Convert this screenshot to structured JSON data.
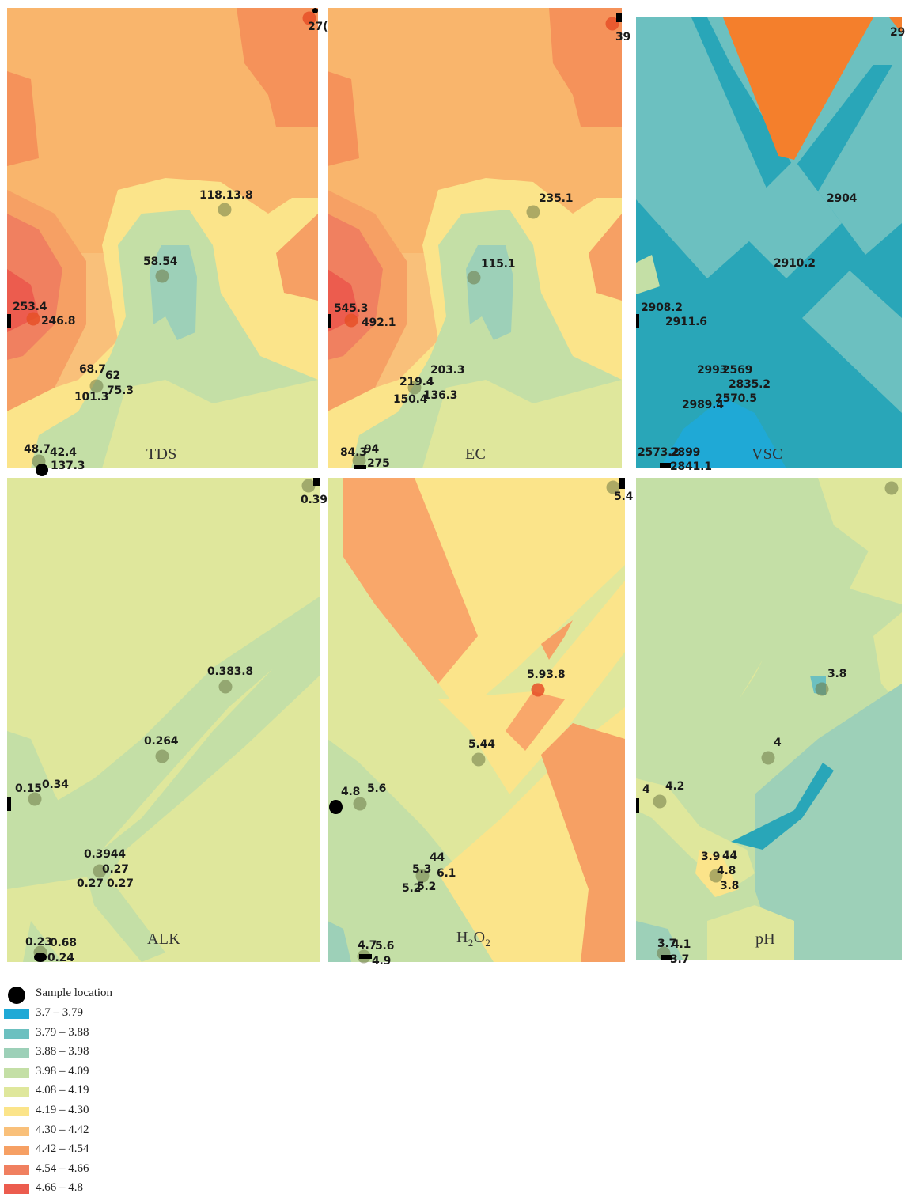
{
  "panels": {
    "tds": {
      "title": "TDS",
      "labels": {
        "a": "118.13.8",
        "b": "58.54",
        "c": "253.4",
        "d": "246.8",
        "e": "68.7",
        "f": "62",
        "g": "101.3",
        "h": "75.3",
        "i": "48.7",
        "j": "42.4",
        "k": "137.3",
        "l": "27("
      }
    },
    "ec": {
      "title": "EC",
      "labels": {
        "a": "235.1",
        "b": "115.1",
        "c": "545.3",
        "d": "492.1",
        "e": "203.3",
        "f": "219.4",
        "g": "150.4",
        "h": "136.3",
        "i": "84.3",
        "j": "94",
        "k": "275",
        "l": "39"
      }
    },
    "vsc": {
      "title": "VSC",
      "labels": {
        "a": "2904",
        "b": "2910.2",
        "c": "2908.2",
        "d": "2911.6",
        "e": "2993",
        "f": "2569",
        "g": "2835.2",
        "h": "2989.4",
        "i": "2570.5",
        "j": "2573.2",
        "k": "2899",
        "l": "2841.1",
        "m": "29"
      }
    },
    "alk": {
      "title": "ALK",
      "labels": {
        "a": "0.383.8",
        "b": "0.264",
        "c": "0.15",
        "d": "0.34",
        "e": "0.3944",
        "f": "0.27",
        "g": "0.27",
        "h": "0.27",
        "i": "0.23",
        "j": "0.68",
        "k": "0.24",
        "l": "0.39"
      }
    },
    "h2o2": {
      "title_main": "H",
      "title_sub1": "2",
      "title_mid": "O",
      "title_sub2": "2",
      "labels": {
        "a": "5.93.8",
        "b": "5.44",
        "c": "4.8",
        "d": "5.6",
        "e": "44",
        "f": "5.3",
        "g": "6.1",
        "h": "5.2",
        "i": "5.2",
        "j": "4.7",
        "k": "5.6",
        "l": "4.9",
        "m": "5.4"
      }
    },
    "ph": {
      "title": "pH",
      "labels": {
        "a": "3.8",
        "b": "4",
        "c": "4",
        "d": "4.2",
        "e": "3.9",
        "f": "44",
        "g": "4.8",
        "h": "3.8",
        "i": "3.7",
        "j": "4.1",
        "k": "3.7"
      }
    }
  },
  "legend": {
    "sample_location": "Sample location",
    "classes": [
      {
        "label": "3.7 – 3.79",
        "color": "#1fa9d6"
      },
      {
        "label": "3.79 – 3.88",
        "color": "#6cc0c0"
      },
      {
        "label": "3.88 – 3.98",
        "color": "#9dd0b8"
      },
      {
        "label": "3.98 – 4.09",
        "color": "#c4dfa6"
      },
      {
        "label": "4.08 – 4.19",
        "color": "#dfe79c"
      },
      {
        "label": "4.19 – 4.30",
        "color": "#fbe48a"
      },
      {
        "label": "4.30 – 4.42",
        "color": "#f9c07a"
      },
      {
        "label": "4.42 – 4.54",
        "color": "#f6a064"
      },
      {
        "label": "4.54 – 4.66",
        "color": "#f08060"
      },
      {
        "label": "4.66 – 4.8",
        "color": "#ec5c4e"
      }
    ]
  }
}
